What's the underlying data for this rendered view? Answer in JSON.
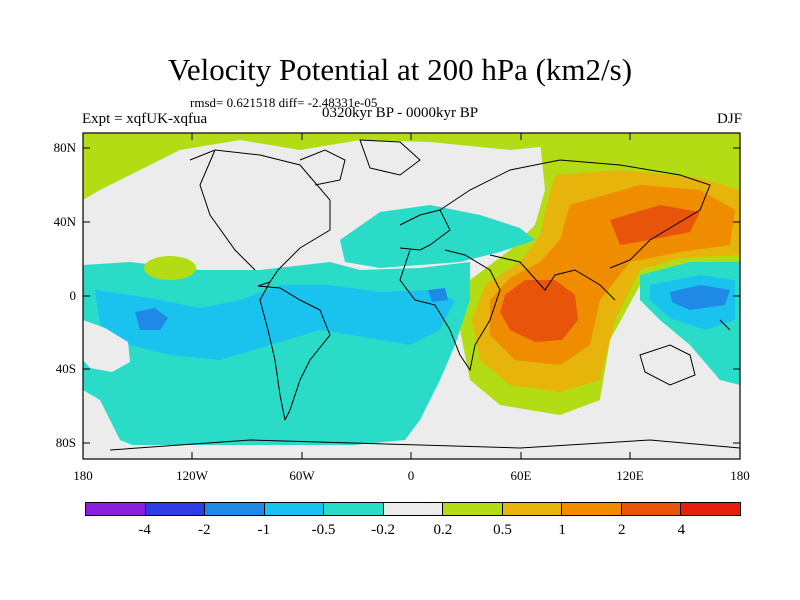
{
  "title": "Velocity Potential at 200 hPa (km2/s)",
  "stats": "rmsd= 0.621518 diff= -2.48331e-05",
  "experiment": "Expt = xqfUK-xqfua",
  "period": "0320kyr BP - 0000kyr BP",
  "season": "DJF",
  "lat_labels": [
    "80N",
    "40N",
    "0",
    "40S",
    "80S"
  ],
  "lon_labels": [
    "180",
    "120W",
    "60W",
    "0",
    "60E",
    "120E",
    "180"
  ],
  "colorbar": {
    "colors": [
      "#8c1ee0",
      "#2e3ce8",
      "#1e8ae6",
      "#19c3ee",
      "#2adcc8",
      "#ececec",
      "#b4dc14",
      "#e6b40a",
      "#f08c00",
      "#e8540a",
      "#e61e0a"
    ],
    "labels": [
      "-4",
      "-2",
      "-1",
      "-0.5",
      "-0.2",
      "0.2",
      "0.5",
      "1",
      "2",
      "4"
    ]
  }
}
